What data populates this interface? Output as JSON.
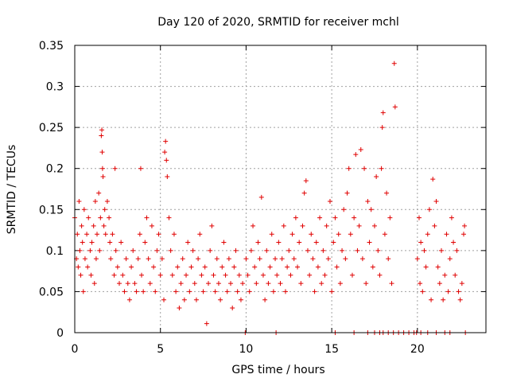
{
  "chart_data": {
    "type": "scatter",
    "title": "Day 120 of 2020, SRMTID for receiver mchl",
    "xlabel": "GPS time / hours",
    "ylabel": "SRMTID / TECUs",
    "xlim": [
      0,
      24
    ],
    "ylim": [
      0,
      0.35
    ],
    "xticks": [
      0,
      5,
      10,
      15,
      20
    ],
    "xtick_labels": [
      "0",
      "5",
      "10",
      "15",
      "20"
    ],
    "yticks": [
      0,
      0.05,
      0.1,
      0.15,
      0.2,
      0.25,
      0.3,
      0.35
    ],
    "ytick_labels": [
      "0",
      "0.05",
      "0.1",
      "0.15",
      "0.2",
      "0.25",
      "0.3",
      "0.35"
    ],
    "grid": true,
    "marker": "+",
    "color": "#e00000",
    "series": [
      {
        "name": "SRMTID",
        "points": [
          [
            0.0,
            0.14
          ],
          [
            0.1,
            0.09
          ],
          [
            0.15,
            0.12
          ],
          [
            0.2,
            0.08
          ],
          [
            0.25,
            0.16
          ],
          [
            0.3,
            0.1
          ],
          [
            0.35,
            0.07
          ],
          [
            0.4,
            0.13
          ],
          [
            0.45,
            0.11
          ],
          [
            0.5,
            0.05
          ],
          [
            0.55,
            0.15
          ],
          [
            0.6,
            0.09
          ],
          [
            0.7,
            0.12
          ],
          [
            0.75,
            0.08
          ],
          [
            0.8,
            0.14
          ],
          [
            0.9,
            0.1
          ],
          [
            0.95,
            0.07
          ],
          [
            1.0,
            0.11
          ],
          [
            1.1,
            0.13
          ],
          [
            1.15,
            0.06
          ],
          [
            1.2,
            0.16
          ],
          [
            1.25,
            0.09
          ],
          [
            1.3,
            0.12
          ],
          [
            1.4,
            0.17
          ],
          [
            1.45,
            0.1
          ],
          [
            1.5,
            0.14
          ],
          [
            1.55,
            0.24
          ],
          [
            1.58,
            0.247
          ],
          [
            1.6,
            0.22
          ],
          [
            1.62,
            0.2
          ],
          [
            1.65,
            0.19
          ],
          [
            1.7,
            0.13
          ],
          [
            1.75,
            0.15
          ],
          [
            1.8,
            0.12
          ],
          [
            1.9,
            0.16
          ],
          [
            2.0,
            0.14
          ],
          [
            2.05,
            0.11
          ],
          [
            2.1,
            0.09
          ],
          [
            2.2,
            0.12
          ],
          [
            2.3,
            0.07
          ],
          [
            2.35,
            0.2
          ],
          [
            2.4,
            0.1
          ],
          [
            2.5,
            0.08
          ],
          [
            2.6,
            0.06
          ],
          [
            2.7,
            0.11
          ],
          [
            2.8,
            0.07
          ],
          [
            2.9,
            0.05
          ],
          [
            3.0,
            0.09
          ],
          [
            3.1,
            0.06
          ],
          [
            3.2,
            0.04
          ],
          [
            3.3,
            0.08
          ],
          [
            3.4,
            0.1
          ],
          [
            3.5,
            0.06
          ],
          [
            3.6,
            0.05
          ],
          [
            3.7,
            0.09
          ],
          [
            3.8,
            0.12
          ],
          [
            3.85,
            0.2
          ],
          [
            3.9,
            0.07
          ],
          [
            4.0,
            0.05
          ],
          [
            4.1,
            0.11
          ],
          [
            4.2,
            0.14
          ],
          [
            4.3,
            0.09
          ],
          [
            4.4,
            0.06
          ],
          [
            4.5,
            0.13
          ],
          [
            4.6,
            0.08
          ],
          [
            4.7,
            0.05
          ],
          [
            4.8,
            0.1
          ],
          [
            4.9,
            0.12
          ],
          [
            5.0,
            0.07
          ],
          [
            5.1,
            0.09
          ],
          [
            5.2,
            0.04
          ],
          [
            5.25,
            0.22
          ],
          [
            5.3,
            0.233
          ],
          [
            5.35,
            0.21
          ],
          [
            5.4,
            0.19
          ],
          [
            5.5,
            0.14
          ],
          [
            5.6,
            0.1
          ],
          [
            5.7,
            0.07
          ],
          [
            5.8,
            0.12
          ],
          [
            5.9,
            0.05
          ],
          [
            6.0,
            0.08
          ],
          [
            6.1,
            0.03
          ],
          [
            6.2,
            0.06
          ],
          [
            6.3,
            0.09
          ],
          [
            6.4,
            0.04
          ],
          [
            6.5,
            0.07
          ],
          [
            6.6,
            0.11
          ],
          [
            6.7,
            0.05
          ],
          [
            6.8,
            0.08
          ],
          [
            6.9,
            0.1
          ],
          [
            7.0,
            0.06
          ],
          [
            7.1,
            0.04
          ],
          [
            7.2,
            0.09
          ],
          [
            7.3,
            0.12
          ],
          [
            7.4,
            0.07
          ],
          [
            7.5,
            0.05
          ],
          [
            7.6,
            0.08
          ],
          [
            7.7,
            0.011
          ],
          [
            7.8,
            0.06
          ],
          [
            7.9,
            0.1
          ],
          [
            8.0,
            0.13
          ],
          [
            8.1,
            0.07
          ],
          [
            8.2,
            0.05
          ],
          [
            8.3,
            0.09
          ],
          [
            8.4,
            0.06
          ],
          [
            8.5,
            0.04
          ],
          [
            8.6,
            0.08
          ],
          [
            8.7,
            0.11
          ],
          [
            8.8,
            0.07
          ],
          [
            8.9,
            0.05
          ],
          [
            9.0,
            0.09
          ],
          [
            9.1,
            0.06
          ],
          [
            9.2,
            0.03
          ],
          [
            9.3,
            0.08
          ],
          [
            9.4,
            0.1
          ],
          [
            9.5,
            0.05
          ],
          [
            9.6,
            0.07
          ],
          [
            9.7,
            0.04
          ],
          [
            9.8,
            0.06
          ],
          [
            9.95,
            0.0
          ],
          [
            10.0,
            0.09
          ],
          [
            10.1,
            0.07
          ],
          [
            10.2,
            0.05
          ],
          [
            10.3,
            0.1
          ],
          [
            10.4,
            0.13
          ],
          [
            10.5,
            0.08
          ],
          [
            10.6,
            0.06
          ],
          [
            10.7,
            0.11
          ],
          [
            10.8,
            0.09
          ],
          [
            10.9,
            0.165
          ],
          [
            11.0,
            0.07
          ],
          [
            11.1,
            0.04
          ],
          [
            11.2,
            0.1
          ],
          [
            11.3,
            0.06
          ],
          [
            11.4,
            0.08
          ],
          [
            11.5,
            0.12
          ],
          [
            11.6,
            0.05
          ],
          [
            11.7,
            0.09
          ],
          [
            11.75,
            0.0
          ],
          [
            11.8,
            0.07
          ],
          [
            11.9,
            0.11
          ],
          [
            12.0,
            0.06
          ],
          [
            12.1,
            0.09
          ],
          [
            12.2,
            0.13
          ],
          [
            12.3,
            0.05
          ],
          [
            12.4,
            0.08
          ],
          [
            12.5,
            0.1
          ],
          [
            12.6,
            0.07
          ],
          [
            12.7,
            0.12
          ],
          [
            12.8,
            0.09
          ],
          [
            12.9,
            0.14
          ],
          [
            13.0,
            0.08
          ],
          [
            13.1,
            0.11
          ],
          [
            13.2,
            0.06
          ],
          [
            13.3,
            0.13
          ],
          [
            13.4,
            0.17
          ],
          [
            13.5,
            0.185
          ],
          [
            13.6,
            0.1
          ],
          [
            13.7,
            0.07
          ],
          [
            13.8,
            0.12
          ],
          [
            13.9,
            0.09
          ],
          [
            14.0,
            0.05
          ],
          [
            14.1,
            0.11
          ],
          [
            14.2,
            0.08
          ],
          [
            14.3,
            0.14
          ],
          [
            14.4,
            0.06
          ],
          [
            14.5,
            0.1
          ],
          [
            14.6,
            0.07
          ],
          [
            14.7,
            0.13
          ],
          [
            14.8,
            0.09
          ],
          [
            14.9,
            0.16
          ],
          [
            15.0,
            0.05
          ],
          [
            15.1,
            0.11
          ],
          [
            15.2,
            0.14
          ],
          [
            15.3,
            0.08
          ],
          [
            15.4,
            0.12
          ],
          [
            15.5,
            0.06
          ],
          [
            15.6,
            0.1
          ],
          [
            15.7,
            0.15
          ],
          [
            15.8,
            0.09
          ],
          [
            15.9,
            0.17
          ],
          [
            16.0,
            0.2
          ],
          [
            16.1,
            0.12
          ],
          [
            16.2,
            0.07
          ],
          [
            16.3,
            0.14
          ],
          [
            16.4,
            0.217
          ],
          [
            16.5,
            0.1
          ],
          [
            16.6,
            0.13
          ],
          [
            16.7,
            0.223
          ],
          [
            16.8,
            0.09
          ],
          [
            16.9,
            0.2
          ],
          [
            17.0,
            0.06
          ],
          [
            17.1,
            0.16
          ],
          [
            17.2,
            0.11
          ],
          [
            17.3,
            0.15
          ],
          [
            17.4,
            0.08
          ],
          [
            17.5,
            0.13
          ],
          [
            17.6,
            0.19
          ],
          [
            17.7,
            0.1
          ],
          [
            17.8,
            0.07
          ],
          [
            17.9,
            0.2
          ],
          [
            17.95,
            0.25
          ],
          [
            18.0,
            0.268
          ],
          [
            18.1,
            0.12
          ],
          [
            18.2,
            0.17
          ],
          [
            18.3,
            0.09
          ],
          [
            18.4,
            0.14
          ],
          [
            18.5,
            0.06
          ],
          [
            18.65,
            0.328
          ],
          [
            18.7,
            0.275
          ],
          [
            17.1,
            0.0
          ],
          [
            17.5,
            0.0
          ],
          [
            18.0,
            0.0
          ],
          [
            18.3,
            0.0
          ],
          [
            18.6,
            0.0
          ],
          [
            18.9,
            0.0
          ],
          [
            19.2,
            0.0
          ],
          [
            19.5,
            0.0
          ],
          [
            19.8,
            0.0
          ],
          [
            20.2,
            0.0
          ],
          [
            20.6,
            0.0
          ],
          [
            21.1,
            0.0
          ],
          [
            21.6,
            0.0
          ],
          [
            21.9,
            0.0
          ],
          [
            22.8,
            0.0
          ],
          [
            16.3,
            0.0
          ],
          [
            15.2,
            0.0
          ],
          [
            17.8,
            0.0
          ],
          [
            19.95,
            0.0
          ],
          [
            20.0,
            0.09
          ],
          [
            20.1,
            0.14
          ],
          [
            20.15,
            0.06
          ],
          [
            20.2,
            0.11
          ],
          [
            20.3,
            0.05
          ],
          [
            20.4,
            0.1
          ],
          [
            20.5,
            0.08
          ],
          [
            20.6,
            0.12
          ],
          [
            20.7,
            0.15
          ],
          [
            20.8,
            0.04
          ],
          [
            20.9,
            0.187
          ],
          [
            21.0,
            0.13
          ],
          [
            21.1,
            0.16
          ],
          [
            21.2,
            0.08
          ],
          [
            21.3,
            0.06
          ],
          [
            21.4,
            0.1
          ],
          [
            21.5,
            0.04
          ],
          [
            21.6,
            0.07
          ],
          [
            21.7,
            0.12
          ],
          [
            21.8,
            0.05
          ],
          [
            21.9,
            0.09
          ],
          [
            22.0,
            0.14
          ],
          [
            22.1,
            0.11
          ],
          [
            22.2,
            0.07
          ],
          [
            22.3,
            0.1
          ],
          [
            22.4,
            0.05
          ],
          [
            22.5,
            0.04
          ],
          [
            22.6,
            0.06
          ],
          [
            22.7,
            0.12
          ],
          [
            22.75,
            0.13
          ]
        ]
      }
    ]
  }
}
